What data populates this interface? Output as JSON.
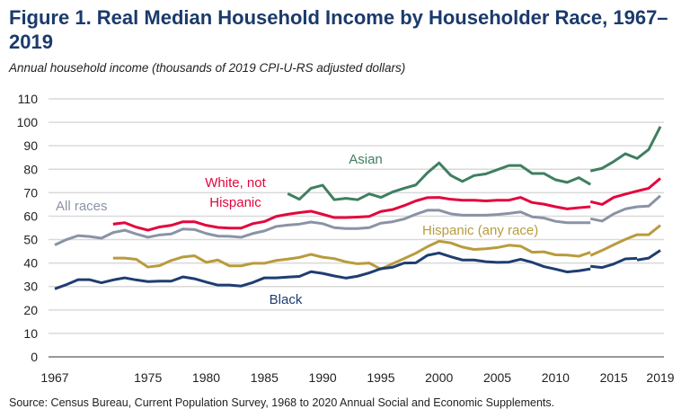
{
  "title": "Figure 1. Real Median Household Income by Householder Race, 1967–2019",
  "subtitle": "Annual household income (thousands of 2019 CPI-U-RS adjusted dollars)",
  "source": "Source: Census Bureau, Current Population Survey, 1968 to 2020 Annual Social and Economic Supplements.",
  "chart_data": {
    "type": "line",
    "title": "Figure 1. Real Median Household Income by Householder Race, 1967–2019",
    "ylabel": "Annual household income (thousands of 2019 CPI-U-RS adjusted dollars)",
    "xlim": [
      1967,
      2019
    ],
    "ylim": [
      0,
      110
    ],
    "x_ticks": [
      "1967",
      "1975",
      "1980",
      "1985",
      "1990",
      "1995",
      "2000",
      "2005",
      "2010",
      "2015",
      "2019"
    ],
    "y_ticks": [
      "0",
      "10",
      "20",
      "30",
      "40",
      "50",
      "60",
      "70",
      "80",
      "90",
      "100",
      "110"
    ],
    "grid": true,
    "legend": "inline labels",
    "series": [
      {
        "name": "Asian",
        "label_lines": [
          "Asian"
        ],
        "color": "#3f7f60",
        "segments": [
          [
            [
              1987,
              69.6
            ],
            [
              1988,
              67.2
            ],
            [
              1989,
              71.9
            ],
            [
              1990,
              73.2
            ],
            [
              1991,
              67.0
            ],
            [
              1992,
              67.6
            ],
            [
              1993,
              67.0
            ],
            [
              1994,
              69.5
            ],
            [
              1995,
              68.0
            ],
            [
              1996,
              70.3
            ],
            [
              1997,
              71.9
            ],
            [
              1998,
              73.3
            ],
            [
              1999,
              78.5
            ],
            [
              2000,
              82.7
            ],
            [
              2001,
              77.4
            ],
            [
              2002,
              74.8
            ],
            [
              2003,
              77.3
            ],
            [
              2004,
              78.0
            ],
            [
              2005,
              79.8
            ],
            [
              2006,
              81.6
            ],
            [
              2007,
              81.6
            ],
            [
              2008,
              78.2
            ],
            [
              2009,
              78.2
            ],
            [
              2010,
              75.5
            ],
            [
              2011,
              74.4
            ],
            [
              2012,
              76.4
            ],
            [
              2013,
              73.5
            ]
          ],
          [
            [
              2013,
              79.3
            ],
            [
              2014,
              80.4
            ],
            [
              2015,
              83.3
            ],
            [
              2016,
              86.6
            ],
            [
              2017,
              84.6
            ],
            [
              2018,
              88.4
            ],
            [
              2019,
              98.2
            ]
          ]
        ]
      },
      {
        "name": "White, not Hispanic",
        "label_lines": [
          "White, not",
          "Hispanic"
        ],
        "color": "#e3063d",
        "segments": [
          [
            [
              1972,
              56.6
            ],
            [
              1973,
              57.2
            ],
            [
              1974,
              55.3
            ],
            [
              1975,
              54.0
            ],
            [
              1976,
              55.4
            ],
            [
              1977,
              56.1
            ],
            [
              1978,
              57.6
            ],
            [
              1979,
              57.6
            ],
            [
              1980,
              56.1
            ],
            [
              1981,
              55.2
            ],
            [
              1982,
              54.9
            ],
            [
              1983,
              54.9
            ],
            [
              1984,
              56.8
            ],
            [
              1985,
              57.7
            ],
            [
              1986,
              59.9
            ],
            [
              1987,
              60.8
            ],
            [
              1988,
              61.5
            ],
            [
              1989,
              62.1
            ],
            [
              1990,
              60.8
            ],
            [
              1991,
              59.4
            ],
            [
              1992,
              59.4
            ],
            [
              1993,
              59.6
            ],
            [
              1994,
              59.9
            ],
            [
              1995,
              62.0
            ],
            [
              1996,
              62.8
            ],
            [
              1997,
              64.5
            ],
            [
              1998,
              66.5
            ],
            [
              1999,
              67.9
            ],
            [
              2000,
              68.0
            ],
            [
              2001,
              67.2
            ],
            [
              2002,
              66.8
            ],
            [
              2003,
              66.8
            ],
            [
              2004,
              66.5
            ],
            [
              2005,
              66.8
            ],
            [
              2006,
              66.8
            ],
            [
              2007,
              68.0
            ],
            [
              2008,
              65.8
            ],
            [
              2009,
              65.1
            ],
            [
              2010,
              64.0
            ],
            [
              2011,
              63.1
            ],
            [
              2012,
              63.6
            ],
            [
              2013,
              64.0
            ]
          ],
          [
            [
              2013,
              66.2
            ],
            [
              2014,
              65.0
            ],
            [
              2015,
              68.0
            ],
            [
              2016,
              69.4
            ],
            [
              2017,
              70.7
            ],
            [
              2018,
              71.9
            ],
            [
              2019,
              76.1
            ]
          ]
        ]
      },
      {
        "name": "All races",
        "label_lines": [
          "All races"
        ],
        "color": "#8a93a6",
        "segments": [
          [
            [
              1967,
              47.7
            ],
            [
              1968,
              50.0
            ],
            [
              1969,
              51.7
            ],
            [
              1970,
              51.3
            ],
            [
              1971,
              50.6
            ],
            [
              1972,
              53.0
            ],
            [
              1973,
              54.0
            ],
            [
              1974,
              52.4
            ],
            [
              1975,
              51.0
            ],
            [
              1976,
              52.0
            ],
            [
              1977,
              52.4
            ],
            [
              1978,
              54.5
            ],
            [
              1979,
              54.3
            ],
            [
              1980,
              52.6
            ],
            [
              1981,
              51.5
            ],
            [
              1982,
              51.4
            ],
            [
              1983,
              51.0
            ],
            [
              1984,
              52.6
            ],
            [
              1985,
              53.7
            ],
            [
              1986,
              55.6
            ],
            [
              1987,
              56.2
            ],
            [
              1988,
              56.6
            ],
            [
              1989,
              57.5
            ],
            [
              1990,
              56.8
            ],
            [
              1991,
              55.1
            ],
            [
              1992,
              54.7
            ],
            [
              1993,
              54.7
            ],
            [
              1994,
              55.1
            ],
            [
              1995,
              57.0
            ],
            [
              1996,
              57.6
            ],
            [
              1997,
              58.8
            ],
            [
              1998,
              60.8
            ],
            [
              1999,
              62.5
            ],
            [
              2000,
              62.5
            ],
            [
              2001,
              61.0
            ],
            [
              2002,
              60.4
            ],
            [
              2003,
              60.4
            ],
            [
              2004,
              60.4
            ],
            [
              2005,
              60.7
            ],
            [
              2006,
              61.2
            ],
            [
              2007,
              61.8
            ],
            [
              2008,
              59.7
            ],
            [
              2009,
              59.2
            ],
            [
              2010,
              57.8
            ],
            [
              2011,
              57.2
            ],
            [
              2012,
              57.2
            ],
            [
              2013,
              57.2
            ]
          ],
          [
            [
              2013,
              58.9
            ],
            [
              2014,
              57.9
            ],
            [
              2015,
              61.0
            ],
            [
              2016,
              63.1
            ],
            [
              2017,
              64.0
            ],
            [
              2018,
              64.3
            ],
            [
              2019,
              68.7
            ]
          ]
        ]
      },
      {
        "name": "Hispanic (any race)",
        "label_lines": [
          "Hispanic (any race)"
        ],
        "color": "#b99b3c",
        "segments": [
          [
            [
              1972,
              42.1
            ],
            [
              1973,
              42.1
            ],
            [
              1974,
              41.6
            ],
            [
              1975,
              38.3
            ],
            [
              1976,
              38.9
            ],
            [
              1977,
              41.1
            ],
            [
              1978,
              42.6
            ],
            [
              1979,
              43.1
            ],
            [
              1980,
              40.3
            ],
            [
              1981,
              41.3
            ],
            [
              1982,
              38.8
            ],
            [
              1983,
              38.8
            ],
            [
              1984,
              39.9
            ],
            [
              1985,
              39.9
            ],
            [
              1986,
              41.1
            ],
            [
              1987,
              41.7
            ],
            [
              1988,
              42.4
            ],
            [
              1989,
              43.7
            ],
            [
              1990,
              42.5
            ],
            [
              1991,
              41.9
            ],
            [
              1992,
              40.5
            ],
            [
              1993,
              39.7
            ],
            [
              1994,
              40.0
            ],
            [
              1995,
              37.4
            ],
            [
              1996,
              39.7
            ],
            [
              1997,
              41.9
            ],
            [
              1998,
              44.2
            ],
            [
              1999,
              47.0
            ],
            [
              2000,
              49.3
            ],
            [
              2001,
              48.6
            ],
            [
              2002,
              46.8
            ],
            [
              2003,
              45.8
            ],
            [
              2004,
              46.1
            ],
            [
              2005,
              46.6
            ],
            [
              2006,
              47.6
            ],
            [
              2007,
              47.2
            ],
            [
              2008,
              44.6
            ],
            [
              2009,
              44.8
            ],
            [
              2010,
              43.5
            ],
            [
              2011,
              43.4
            ],
            [
              2012,
              42.9
            ],
            [
              2013,
              44.6
            ]
          ],
          [
            [
              2013,
              43.2
            ],
            [
              2014,
              45.4
            ],
            [
              2015,
              47.8
            ],
            [
              2016,
              50.1
            ],
            [
              2017,
              52.1
            ],
            [
              2018,
              52.1
            ],
            [
              2019,
              56.1
            ]
          ]
        ]
      },
      {
        "name": "Black",
        "label_lines": [
          "Black"
        ],
        "color": "#1e3d72",
        "segments": [
          [
            [
              1967,
              29.0
            ],
            [
              1968,
              30.8
            ],
            [
              1969,
              32.9
            ],
            [
              1970,
              32.9
            ],
            [
              1971,
              31.6
            ],
            [
              1972,
              32.8
            ],
            [
              1973,
              33.7
            ],
            [
              1974,
              32.8
            ],
            [
              1975,
              32.1
            ],
            [
              1976,
              32.3
            ],
            [
              1977,
              32.3
            ],
            [
              1978,
              34.1
            ],
            [
              1979,
              33.3
            ],
            [
              1980,
              31.9
            ],
            [
              1981,
              30.6
            ],
            [
              1982,
              30.6
            ],
            [
              1983,
              30.2
            ],
            [
              1984,
              31.7
            ],
            [
              1985,
              33.7
            ],
            [
              1986,
              33.7
            ],
            [
              1987,
              34.0
            ],
            [
              1988,
              34.3
            ],
            [
              1989,
              36.3
            ],
            [
              1990,
              35.6
            ],
            [
              1991,
              34.5
            ],
            [
              1992,
              33.6
            ],
            [
              1993,
              34.4
            ],
            [
              1994,
              35.8
            ],
            [
              1995,
              37.6
            ],
            [
              1996,
              38.2
            ],
            [
              1997,
              40.0
            ],
            [
              1998,
              40.1
            ],
            [
              1999,
              43.3
            ],
            [
              2000,
              44.3
            ],
            [
              2001,
              42.7
            ],
            [
              2002,
              41.3
            ],
            [
              2003,
              41.3
            ],
            [
              2004,
              40.6
            ],
            [
              2005,
              40.3
            ],
            [
              2006,
              40.4
            ],
            [
              2007,
              41.6
            ],
            [
              2008,
              40.3
            ],
            [
              2009,
              38.5
            ],
            [
              2010,
              37.4
            ],
            [
              2011,
              36.2
            ],
            [
              2012,
              36.7
            ],
            [
              2013,
              37.5
            ]
          ],
          [
            [
              2013,
              38.6
            ],
            [
              2014,
              38.1
            ],
            [
              2015,
              39.6
            ],
            [
              2016,
              41.8
            ],
            [
              2017,
              42.0
            ]
          ],
          [
            [
              2017,
              41.3
            ],
            [
              2018,
              42.1
            ],
            [
              2019,
              45.4
            ]
          ]
        ]
      }
    ]
  }
}
